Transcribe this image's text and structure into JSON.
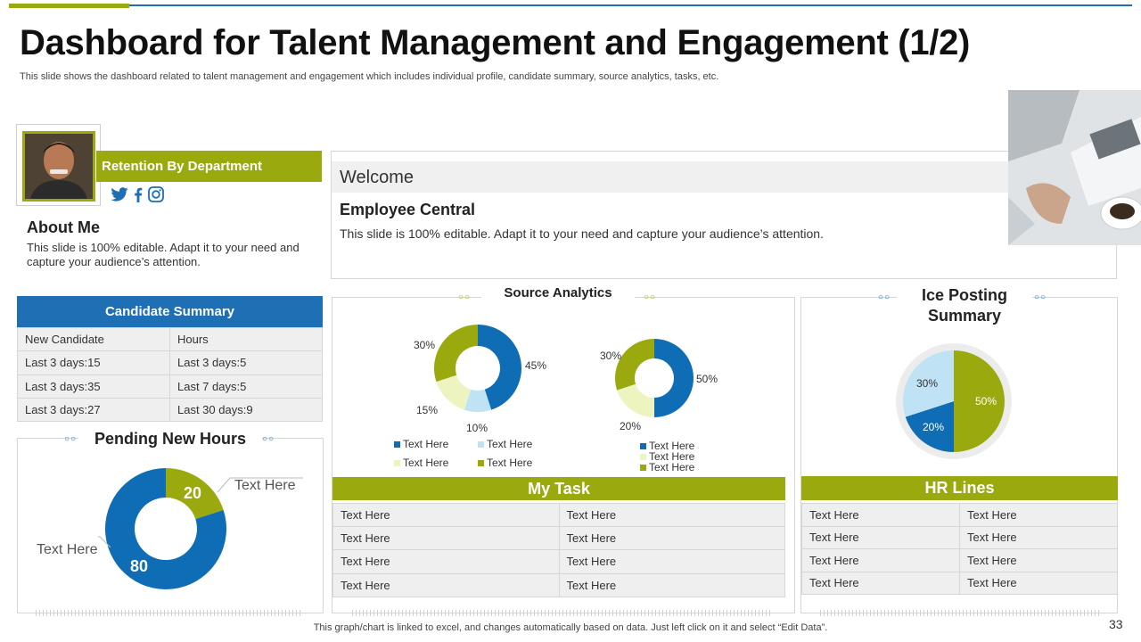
{
  "header": {
    "title": "Dashboard for Talent Management and Engagement (1/2)",
    "subtitle": "This slide shows the dashboard related to talent management and engagement which includes individual profile, candidate summary, source analytics, tasks, etc."
  },
  "profile": {
    "retention_label": "Retention By Department",
    "social_icons": [
      "twitter-icon",
      "facebook-icon",
      "instagram-icon"
    ],
    "about_title": "About Me",
    "about_text": "This slide is 100% editable. Adapt it to your need and capture your audience’s attention."
  },
  "candidate_summary": {
    "title": "Candidate Summary",
    "headers": [
      "New Candidate",
      "Hours"
    ],
    "rows": [
      [
        "Last 3 days:15",
        "Last 3 days:5"
      ],
      [
        "Last 3 days:35",
        "Last 7 days:5"
      ],
      [
        "Last 3 days:27",
        "Last 30 days:9"
      ]
    ]
  },
  "pending": {
    "title": "Pending New Hours",
    "label_top": "Text Here",
    "label_bottom": "Text Here",
    "value_small": "20",
    "value_large": "80"
  },
  "welcome": {
    "band_title": "Welcome",
    "heading": "Employee Central",
    "text": "This slide is 100% editable. Adapt it to your need and capture your audience’s attention."
  },
  "source_analytics": {
    "title": "Source Analytics",
    "donut1_labels": {
      "a": "45%",
      "b": "10%",
      "c": "15%",
      "d": "30%"
    },
    "donut2_labels": {
      "a": "50%",
      "b": "20%",
      "c": "30%"
    },
    "legend1": [
      "Text Here",
      "Text Here",
      "Text Here",
      "Text Here"
    ],
    "legend2": [
      "Text Here",
      "Text Here",
      "Text Here"
    ]
  },
  "my_task": {
    "title": "My Task",
    "rows": [
      [
        "Text Here",
        "Text Here"
      ],
      [
        "Text Here",
        "Text Here"
      ],
      [
        "Text Here",
        "Text Here"
      ],
      [
        "Text Here",
        "Text Here"
      ]
    ]
  },
  "ice_posting": {
    "title_line1": "Ice Posting",
    "title_line2": "Summary",
    "labels": {
      "a": "50%",
      "b": "20%",
      "c": "30%"
    }
  },
  "hr_lines": {
    "title": "HR Lines",
    "rows": [
      [
        "Text Here",
        "Text Here"
      ],
      [
        "Text Here",
        "Text Here"
      ],
      [
        "Text Here",
        "Text Here"
      ],
      [
        "Text Here",
        "Text Here"
      ]
    ]
  },
  "footer": {
    "note": "This graph/chart is linked to excel,  and changes automatically based on data. Just left click on it and select “Edit Data”.",
    "page_number": "33"
  },
  "colors": {
    "blue": "#0e6db4",
    "green": "#9aaa0e",
    "light_blue": "#bfe3f5",
    "pale_yellow": "#eef4c0"
  },
  "chart_data": [
    {
      "type": "pie",
      "title": "Pending New Hours",
      "categories": [
        "Text Here",
        "Text Here"
      ],
      "values": [
        20,
        80
      ]
    },
    {
      "type": "pie",
      "title": "Source Analytics (left)",
      "categories": [
        "Text Here",
        "Text Here",
        "Text Here",
        "Text Here"
      ],
      "values": [
        45,
        10,
        15,
        30
      ]
    },
    {
      "type": "pie",
      "title": "Source Analytics (right)",
      "categories": [
        "Text Here",
        "Text Here",
        "Text Here"
      ],
      "values": [
        50,
        20,
        30
      ]
    },
    {
      "type": "pie",
      "title": "Ice Posting Summary",
      "categories": [
        "",
        "",
        ""
      ],
      "values": [
        50,
        20,
        30
      ]
    }
  ]
}
